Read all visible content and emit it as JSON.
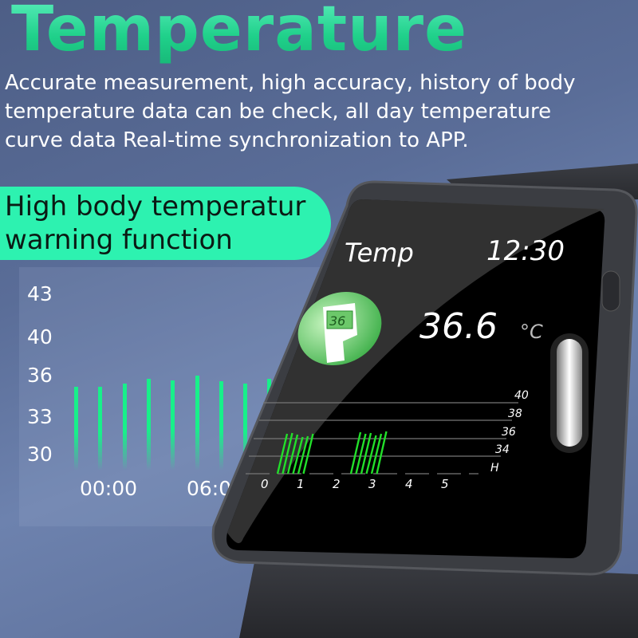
{
  "title": "Temperature",
  "description": "Accurate measurement, high accuracy, history of body temperature data can be check, all day temperature curve data Real-time synchronization to APP.",
  "feature_pill": {
    "line1": "High body temperatur",
    "line2": "warning function"
  },
  "colors": {
    "accent": "#2df2b0",
    "bar": "#18f08a",
    "watch_bar": "#22e02a",
    "background": "#5a6d98"
  },
  "chart_data": {
    "type": "bar",
    "yticks": [
      "43",
      "40",
      "36",
      "33",
      "30"
    ],
    "ylim": [
      30,
      43
    ],
    "xticks": [
      "00:00",
      "06:0"
    ],
    "values": [
      36.4,
      36.4,
      36.6,
      37.0,
      36.9,
      37.3,
      36.8,
      36.6,
      37.0
    ]
  },
  "watch": {
    "screen_title": "Temp",
    "time": "12:30",
    "icon": "thermometer-watch-icon",
    "icon_readout": "36",
    "temperature": "36.6",
    "unit": "°C",
    "chart": {
      "ylabels": [
        "40",
        "38",
        "36",
        "34",
        "H"
      ],
      "xlabels": [
        "0",
        "1",
        "2",
        "3",
        "4",
        "5"
      ]
    }
  }
}
